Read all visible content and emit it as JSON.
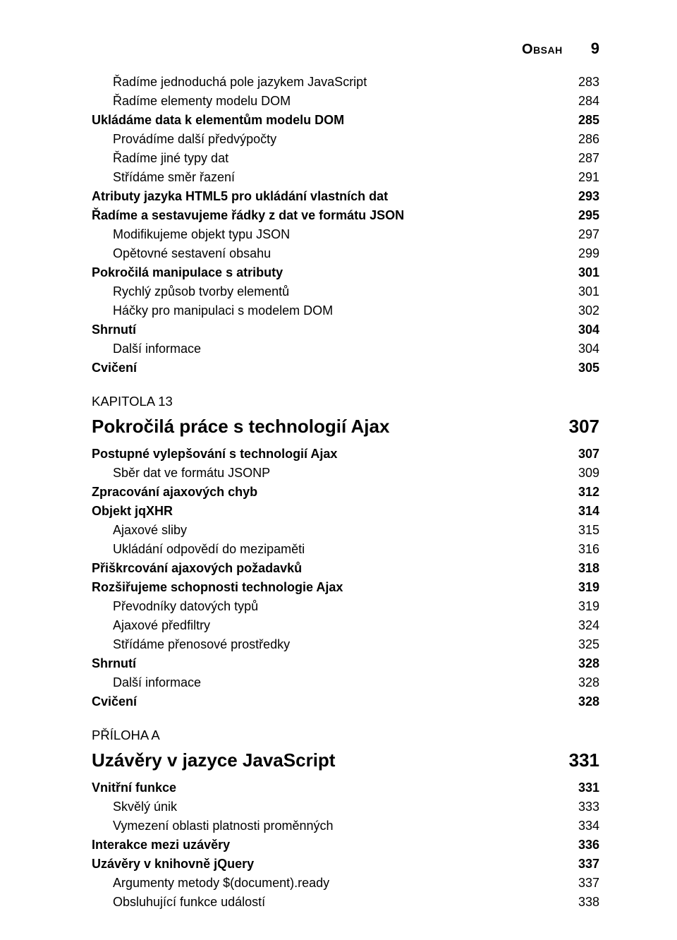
{
  "header": {
    "book_title": "Obsah",
    "page_number": "9"
  },
  "toc": {
    "items": [
      {
        "indent": 2,
        "bold": false,
        "label": "Řadíme jednoduchá pole jazykem JavaScript",
        "page": "283"
      },
      {
        "indent": 2,
        "bold": false,
        "label": "Řadíme elementy modelu DOM",
        "page": "284"
      },
      {
        "indent": 1,
        "bold": true,
        "label": "Ukládáme data k elementům modelu DOM",
        "page": "285"
      },
      {
        "indent": 2,
        "bold": false,
        "label": "Provádíme další předvýpočty",
        "page": "286"
      },
      {
        "indent": 2,
        "bold": false,
        "label": "Řadíme jiné typy dat",
        "page": "287"
      },
      {
        "indent": 2,
        "bold": false,
        "label": "Střídáme směr řazení",
        "page": "291"
      },
      {
        "indent": 1,
        "bold": true,
        "label": "Atributy jazyka HTML5 pro ukládání vlastních dat",
        "page": "293"
      },
      {
        "indent": 1,
        "bold": true,
        "label": "Řadíme a sestavujeme řádky z dat ve formátu JSON",
        "page": "295"
      },
      {
        "indent": 2,
        "bold": false,
        "label": "Modifikujeme objekt typu JSON",
        "page": "297"
      },
      {
        "indent": 2,
        "bold": false,
        "label": "Opětovné sestavení obsahu",
        "page": "299"
      },
      {
        "indent": 1,
        "bold": true,
        "label": "Pokročilá manipulace s atributy",
        "page": "301"
      },
      {
        "indent": 2,
        "bold": false,
        "label": "Rychlý způsob tvorby elementů",
        "page": "301"
      },
      {
        "indent": 2,
        "bold": false,
        "label": "Háčky pro manipulaci s modelem DOM",
        "page": "302"
      },
      {
        "indent": 1,
        "bold": true,
        "label": "Shrnutí",
        "page": "304"
      },
      {
        "indent": 2,
        "bold": false,
        "label": "Další informace",
        "page": "304"
      },
      {
        "indent": 1,
        "bold": true,
        "label": "Cvičení",
        "page": "305"
      }
    ]
  },
  "chapter13": {
    "section_label": "KAPITOLA 13",
    "title": "Pokročilá práce s technologií Ajax",
    "title_page": "307",
    "items": [
      {
        "indent": 1,
        "bold": true,
        "label": "Postupné vylepšování s technologií Ajax",
        "page": "307"
      },
      {
        "indent": 2,
        "bold": false,
        "label": "Sběr dat ve formátu JSONP",
        "page": "309"
      },
      {
        "indent": 1,
        "bold": true,
        "label": "Zpracování ajaxových chyb",
        "page": "312"
      },
      {
        "indent": 1,
        "bold": true,
        "label": "Objekt jqXHR",
        "page": "314"
      },
      {
        "indent": 2,
        "bold": false,
        "label": "Ajaxové sliby",
        "page": "315"
      },
      {
        "indent": 2,
        "bold": false,
        "label": "Ukládání odpovědí do mezipaměti",
        "page": "316"
      },
      {
        "indent": 1,
        "bold": true,
        "label": "Přiškrcování ajaxových požadavků",
        "page": "318"
      },
      {
        "indent": 1,
        "bold": true,
        "label": "Rozšiřujeme schopnosti technologie Ajax",
        "page": "319"
      },
      {
        "indent": 2,
        "bold": false,
        "label": "Převodníky datových typů",
        "page": "319"
      },
      {
        "indent": 2,
        "bold": false,
        "label": "Ajaxové předfiltry",
        "page": "324"
      },
      {
        "indent": 2,
        "bold": false,
        "label": "Střídáme přenosové prostředky",
        "page": "325"
      },
      {
        "indent": 1,
        "bold": true,
        "label": "Shrnutí",
        "page": "328"
      },
      {
        "indent": 2,
        "bold": false,
        "label": "Další informace",
        "page": "328"
      },
      {
        "indent": 1,
        "bold": true,
        "label": "Cvičení",
        "page": "328"
      }
    ]
  },
  "appendixA": {
    "section_label": "PŘÍLOHA A",
    "title": "Uzávěry v jazyce JavaScript",
    "title_page": "331",
    "items": [
      {
        "indent": 1,
        "bold": true,
        "label": "Vnitřní funkce",
        "page": "331"
      },
      {
        "indent": 2,
        "bold": false,
        "label": "Skvělý únik",
        "page": "333"
      },
      {
        "indent": 2,
        "bold": false,
        "label": "Vymezení oblasti platnosti proměnných",
        "page": "334"
      },
      {
        "indent": 1,
        "bold": true,
        "label": "Interakce mezi uzávěry",
        "page": "336"
      },
      {
        "indent": 1,
        "bold": true,
        "label": "Uzávěry v knihovně jQuery",
        "page": "337"
      },
      {
        "indent": 2,
        "bold": false,
        "label": "Argumenty metody $(document).ready",
        "page": "337"
      },
      {
        "indent": 2,
        "bold": false,
        "label": "Obsluhující funkce událostí",
        "page": "338"
      }
    ]
  }
}
